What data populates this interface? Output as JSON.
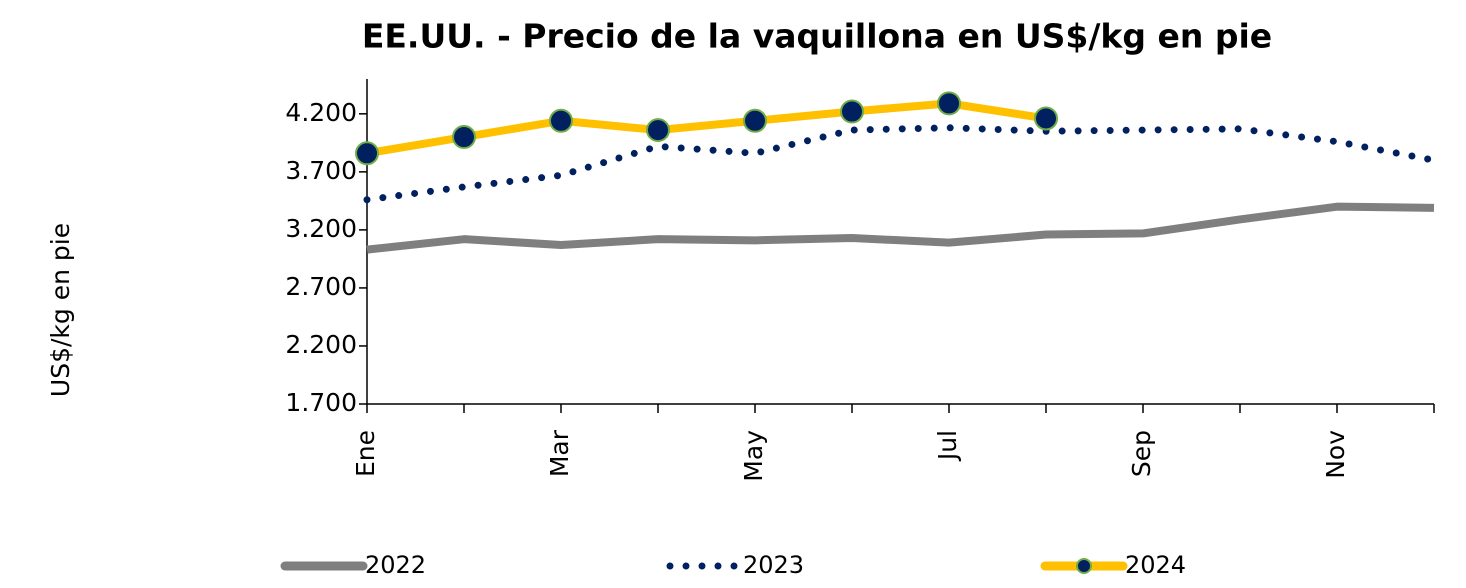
{
  "chart_data": {
    "type": "line",
    "title": "EE.UU. - Precio de la vaquillona en US$/kg en pie",
    "y_label": "US$/kg en pie",
    "categories": [
      "Ene",
      null,
      "Mar",
      null,
      "May",
      null,
      "Jul",
      null,
      "Sep",
      null,
      "Nov",
      null
    ],
    "ylim": [
      1.7,
      4.5
    ],
    "yticks": [
      {
        "value": 1.7,
        "label": "1.700"
      },
      {
        "value": 2.2,
        "label": "2.200"
      },
      {
        "value": 2.7,
        "label": "2.700"
      },
      {
        "value": 3.2,
        "label": "3.200"
      },
      {
        "value": 3.7,
        "label": "3.700"
      },
      {
        "value": 4.2,
        "label": "4.200"
      }
    ],
    "grid": false,
    "legend": "bottom",
    "series": [
      {
        "name": "2022",
        "color": "#7f7f7f",
        "style": "solid",
        "values": [
          3.03,
          3.12,
          3.07,
          3.12,
          3.11,
          3.13,
          3.09,
          3.16,
          3.17,
          3.29,
          3.4,
          3.39
        ]
      },
      {
        "name": "2023",
        "color": "#002060",
        "style": "dotted",
        "values": [
          3.46,
          3.57,
          3.67,
          3.92,
          3.86,
          4.06,
          4.08,
          4.05,
          4.06,
          4.07,
          3.96,
          3.8
        ]
      },
      {
        "name": "2024",
        "color": "#ffc000",
        "style": "solid",
        "marker_color": "#002060",
        "marker_edge": "#70ad47",
        "values": [
          3.86,
          4.0,
          4.14,
          4.06,
          4.14,
          4.22,
          4.29,
          4.16,
          null,
          null,
          null,
          null
        ]
      }
    ]
  }
}
